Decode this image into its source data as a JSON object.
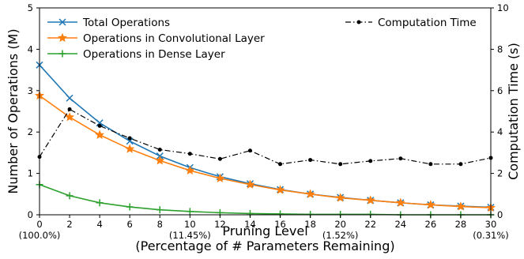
{
  "chart_data": {
    "type": "line",
    "x": [
      0,
      2,
      4,
      6,
      8,
      10,
      12,
      14,
      16,
      18,
      20,
      22,
      24,
      26,
      28,
      30
    ],
    "xlim": [
      0,
      30
    ],
    "x_ticks": [
      "0",
      "2",
      "4",
      "6",
      "8",
      "10",
      "12",
      "14",
      "16",
      "18",
      "20",
      "22",
      "24",
      "26",
      "28",
      "30"
    ],
    "x_sub_labels": [
      {
        "x": 0,
        "label": "(100.0%)"
      },
      {
        "x": 10,
        "label": "(11.45%)"
      },
      {
        "x": 20,
        "label": "(1.52%)"
      },
      {
        "x": 30,
        "label": "(0.31%)"
      }
    ],
    "xlabel_line1": "Pruning Level",
    "xlabel_line2": "(Percentage of # Parameters Remaining)",
    "ylabel": "Number of Operations (M)",
    "ylim": [
      0,
      5
    ],
    "y_ticks": [
      "0",
      "1",
      "2",
      "3",
      "4",
      "5"
    ],
    "y2label": "Computation Time (s)",
    "y2lim": [
      0,
      10
    ],
    "y2_ticks": [
      "0",
      "2",
      "4",
      "6",
      "8",
      "10"
    ],
    "grid": false,
    "series": [
      {
        "name": "Total Operations",
        "axis": "left",
        "color": "#1f77b4",
        "marker": "x",
        "linestyle": "solid",
        "values": [
          3.62,
          2.82,
          2.22,
          1.78,
          1.42,
          1.14,
          0.92,
          0.75,
          0.61,
          0.5,
          0.42,
          0.35,
          0.29,
          0.24,
          0.21,
          0.18
        ]
      },
      {
        "name": "Operations in Convolutional Layer",
        "axis": "left",
        "color": "#ff7f0e",
        "marker": "star",
        "linestyle": "solid",
        "values": [
          2.88,
          2.36,
          1.93,
          1.59,
          1.31,
          1.07,
          0.88,
          0.73,
          0.6,
          0.5,
          0.41,
          0.35,
          0.29,
          0.24,
          0.2,
          0.17
        ]
      },
      {
        "name": "Operations in Dense Layer",
        "axis": "left",
        "color": "#2ca02c",
        "marker": "plus",
        "linestyle": "solid",
        "values": [
          0.73,
          0.46,
          0.29,
          0.19,
          0.12,
          0.08,
          0.05,
          0.03,
          0.02,
          0.01,
          0.01,
          0.01,
          0.0,
          0.0,
          0.0,
          0.0
        ]
      },
      {
        "name": "Computation Time",
        "axis": "right",
        "color": "#000000",
        "marker": "dot",
        "linestyle": "dashdot",
        "values": [
          2.8,
          5.1,
          4.3,
          3.7,
          3.15,
          2.95,
          2.7,
          3.1,
          2.45,
          2.65,
          2.45,
          2.6,
          2.72,
          2.45,
          2.45,
          2.75
        ]
      }
    ],
    "legend_left_location": "upper-left",
    "legend_right_location": "upper-right"
  }
}
